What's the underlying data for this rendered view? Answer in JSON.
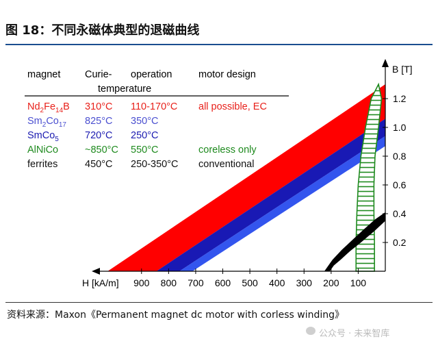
{
  "page": {
    "title": "图 18：不同永磁体典型的退磁曲线",
    "source": "资料来源：Maxon《Permanent magnet dc motor with corless winding》",
    "watermark": "公众号 · 未来智库"
  },
  "chart_data": {
    "type": "area",
    "xlabel": "H [kA/m]",
    "ylabel": "B [T]",
    "x_ticks": [
      900,
      800,
      700,
      600,
      500,
      400,
      300,
      200,
      100
    ],
    "y_ticks": [
      0.2,
      0.4,
      0.6,
      0.8,
      1.0,
      1.2
    ],
    "y_tick_labels": [
      "0.2",
      "0.4",
      "0.6",
      "0.8",
      "1.0",
      "1.2"
    ],
    "xlim": [
      0,
      1030
    ],
    "ylim": [
      0,
      1.35
    ],
    "x_reversed": true,
    "grid": false,
    "table": {
      "headers": [
        [
          "magnet"
        ],
        [
          "Curie-",
          "temperature"
        ],
        [
          "operation"
        ],
        [
          "motor design"
        ]
      ],
      "rows": [
        {
          "magnet": "Nd",
          "magnet_subs": [
            {
              "sub": "2",
              "after": "Fe"
            },
            {
              "sub": "14",
              "after": "B"
            }
          ],
          "curie": "310°C",
          "operation": "110-170°C",
          "design": "all possible, EC",
          "color": "#e8201a"
        },
        {
          "magnet": "Sm",
          "magnet_subs": [
            {
              "sub": "2",
              "after": "Co"
            },
            {
              "sub": "17",
              "after": ""
            }
          ],
          "curie": "825°C",
          "operation": "350°C",
          "design": "",
          "color": "#4a4fd0"
        },
        {
          "magnet": "SmCo",
          "magnet_subs": [
            {
              "sub": "5",
              "after": ""
            }
          ],
          "curie": "720°C",
          "operation": "250°C",
          "design": "",
          "color": "#1a1ab0"
        },
        {
          "magnet": "AlNiCo",
          "magnet_subs": [],
          "curie": "~850°C",
          "operation": "550°C",
          "design": "coreless only",
          "color": "#1e8a1e"
        },
        {
          "magnet": "ferrites",
          "magnet_subs": [],
          "curie": "450°C",
          "operation": "250-350°C",
          "design": "conventional",
          "color": "#111111"
        }
      ]
    },
    "series": [
      {
        "label": "Nd2Fe14B",
        "color": "#ff0000",
        "shape": "band",
        "B_r_upper": 1.3,
        "B_r_lower": 1.06,
        "H_at_B0_upper": 1025,
        "H_at_B0_lower": 845
      },
      {
        "label": "Sm2Co17",
        "color": "#1919b4",
        "shape": "band",
        "B_r_upper": 1.06,
        "B_r_lower": 0.94,
        "H_at_B0_upper": 845,
        "H_at_B0_lower": 760
      },
      {
        "label": "SmCo5",
        "color": "#3355ee",
        "shape": "band",
        "B_r_upper": 0.94,
        "B_r_lower": 0.87,
        "H_at_B0_upper": 760,
        "H_at_B0_lower": 712
      },
      {
        "label": "AlNiCo",
        "color": "#1e8a1e",
        "shape": "hatched-loop",
        "left_edge": [
          [
            25,
            1.3
          ],
          [
            52,
            1.2
          ],
          [
            73,
            1.0
          ],
          [
            90,
            0.8
          ],
          [
            100,
            0.6
          ],
          [
            105,
            0.4
          ],
          [
            108,
            0.2
          ],
          [
            108,
            0.0
          ]
        ],
        "right_edge": [
          [
            25,
            1.3
          ],
          [
            14,
            1.2
          ],
          [
            25,
            1.0
          ],
          [
            38,
            0.8
          ],
          [
            42,
            0.6
          ],
          [
            42,
            0.4
          ],
          [
            40,
            0.2
          ],
          [
            40,
            0.0
          ]
        ]
      },
      {
        "label": "ferrites",
        "color": "#000000",
        "shape": "filled-loop",
        "upper_edge": [
          [
            0,
            0.41
          ],
          [
            38,
            0.36
          ],
          [
            80,
            0.29
          ],
          [
            120,
            0.22
          ],
          [
            160,
            0.15
          ],
          [
            195,
            0.08
          ],
          [
            225,
            0.0
          ]
        ],
        "lower_edge": [
          [
            0,
            0.35
          ],
          [
            40,
            0.28
          ],
          [
            90,
            0.2
          ],
          [
            130,
            0.14
          ],
          [
            165,
            0.08
          ],
          [
            190,
            0.04
          ],
          [
            205,
            0.0
          ]
        ]
      }
    ]
  }
}
